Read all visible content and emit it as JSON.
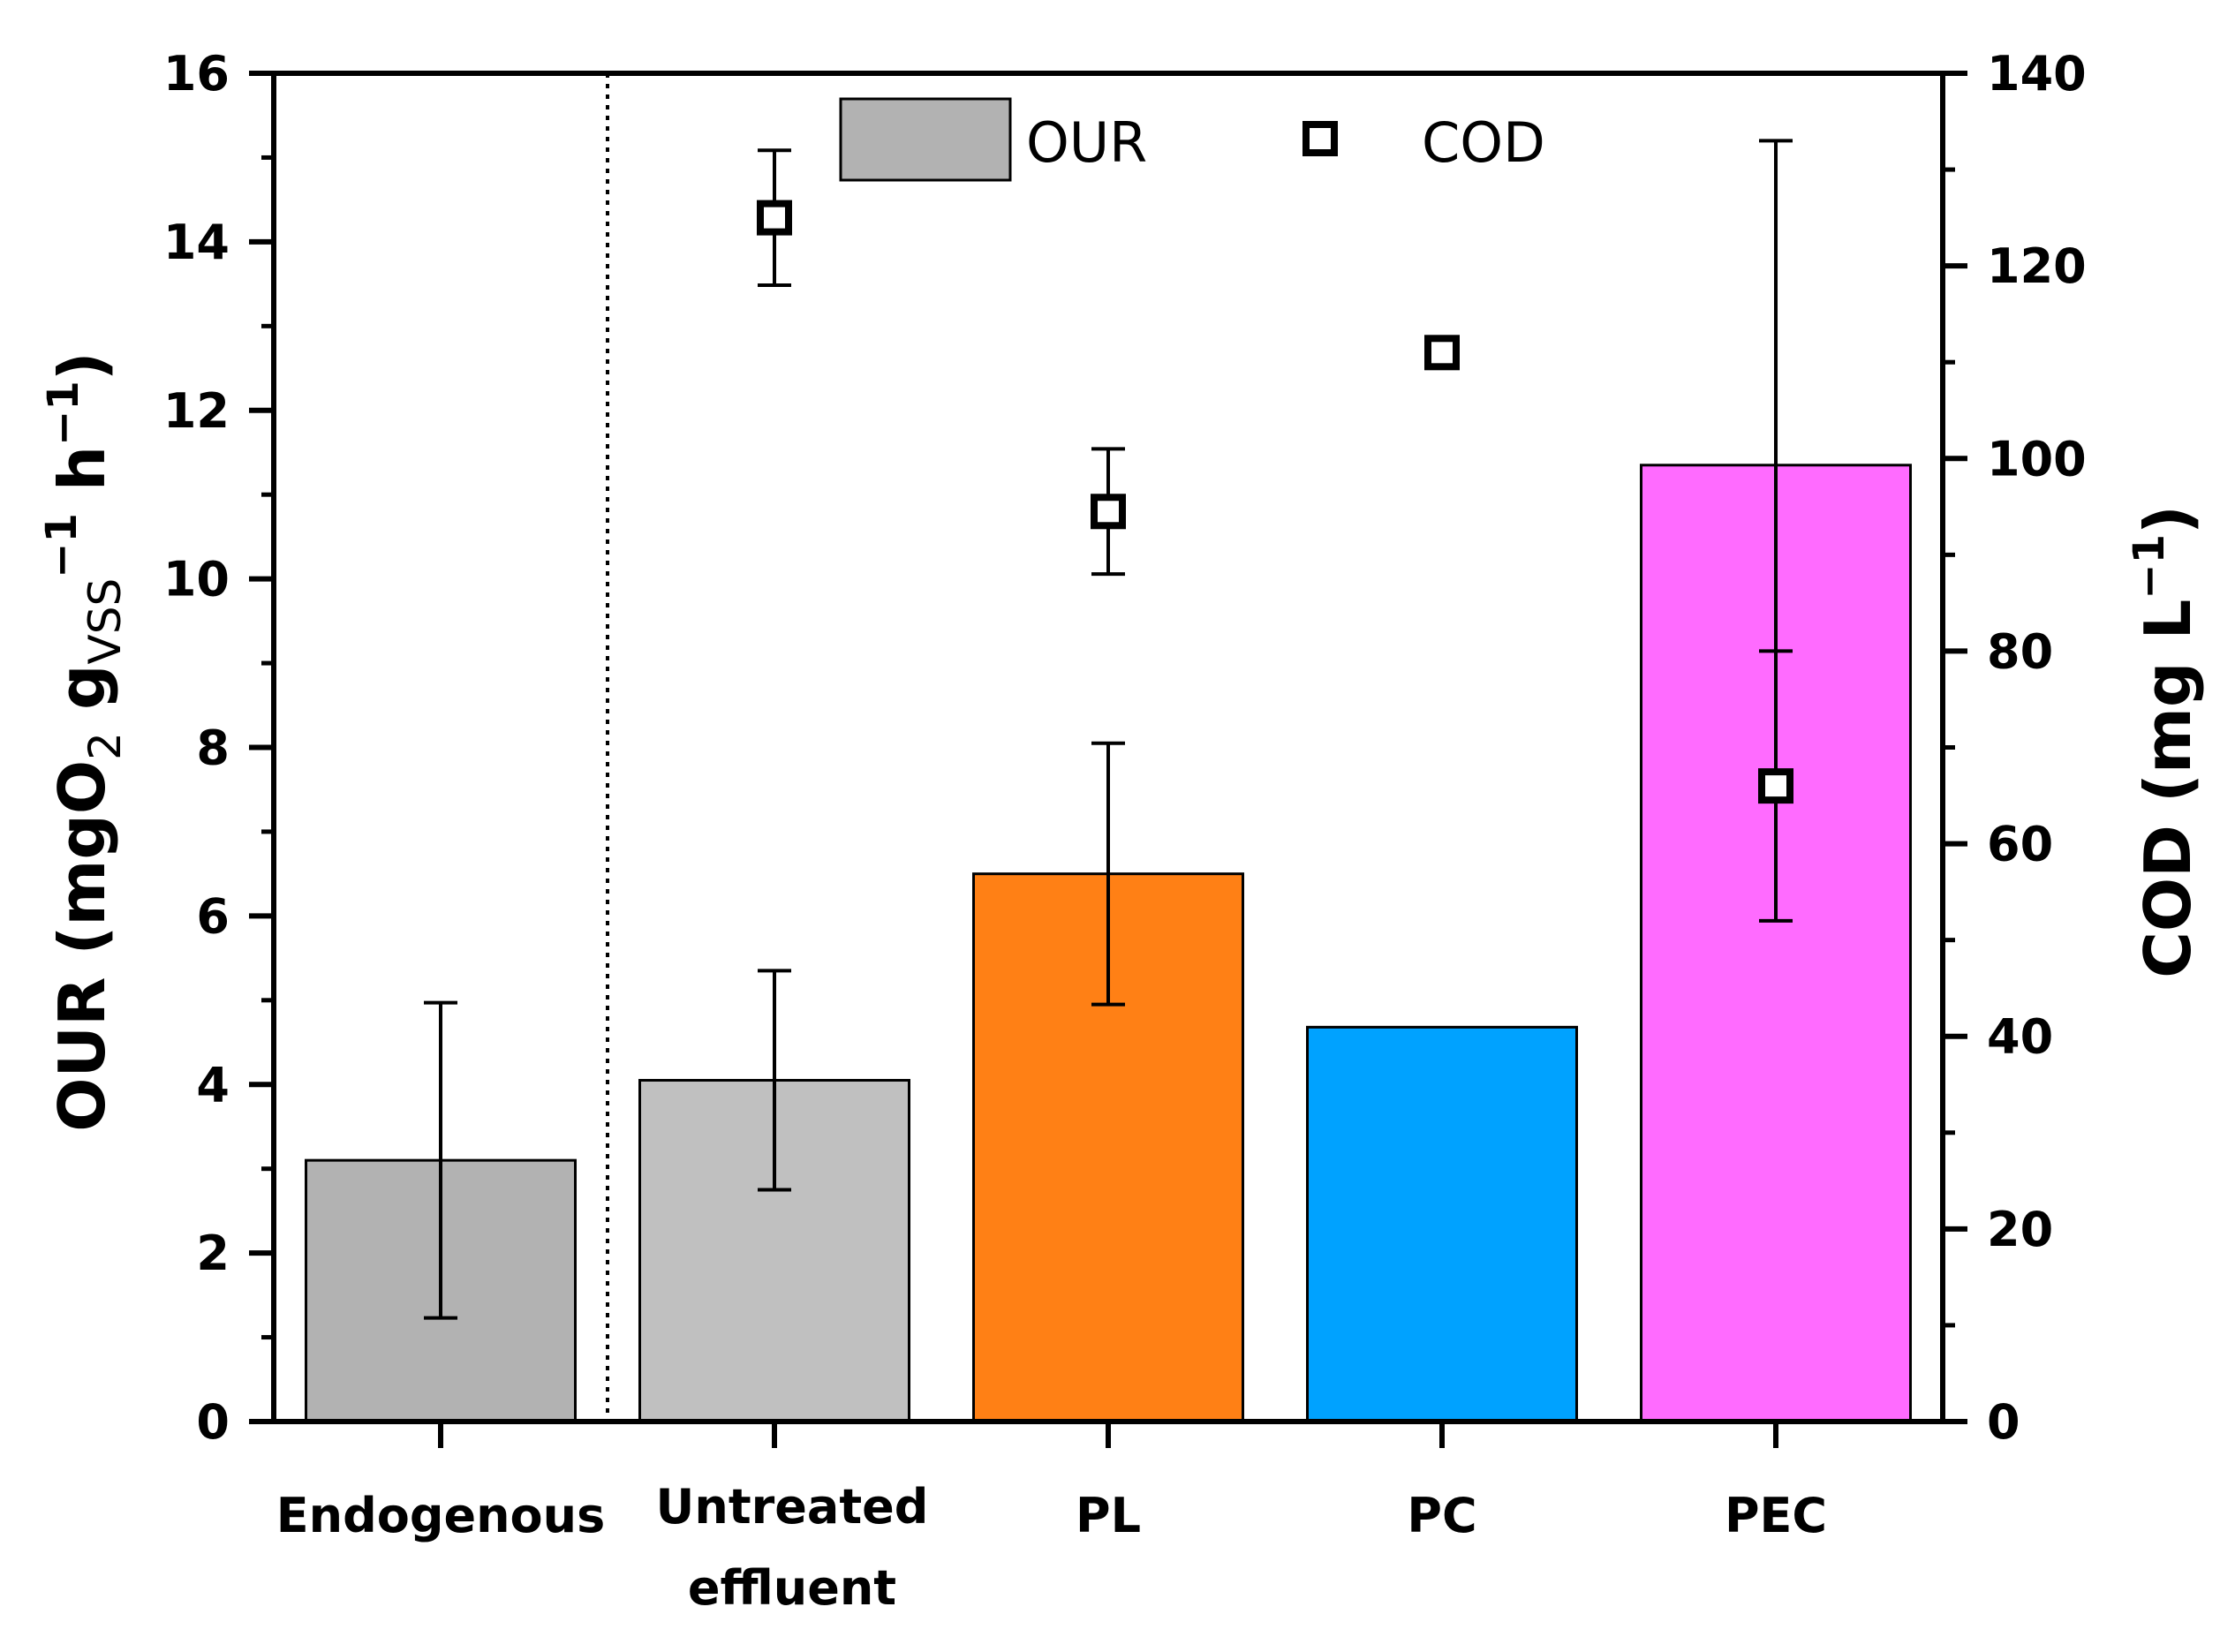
{
  "chart_data": {
    "type": "bar",
    "categories": [
      {
        "lines": [
          "Endogenous"
        ]
      },
      {
        "lines": [
          "Untreated",
          "effluent"
        ]
      },
      {
        "lines": [
          "PL"
        ]
      },
      {
        "lines": [
          "PC"
        ]
      },
      {
        "lines": [
          "PEC"
        ]
      }
    ],
    "series": [
      {
        "name": "OUR",
        "kind": "bar",
        "axis": "left",
        "values": [
          3.1,
          4.05,
          6.5,
          4.68,
          11.35
        ],
        "errors": [
          1.87,
          1.3,
          1.55,
          null,
          3.85
        ],
        "colors": [
          "#b2b2b2",
          "#c0c0c0",
          "#ff8015",
          "#00a2ff",
          "#ff6bff"
        ]
      },
      {
        "name": "COD",
        "kind": "scatter",
        "axis": "right",
        "values": [
          null,
          125,
          94.5,
          111,
          66
        ],
        "errors": [
          null,
          7,
          6.5,
          null,
          14
        ]
      }
    ],
    "left_axis": {
      "label_main": "OUR (mgO",
      "label_sub_o2": "2",
      "label_g": " g",
      "label_sub_vss": "VSS",
      "label_sup_1": "−1",
      "label_h": " h",
      "label_sup_2": "−1",
      "label_end": ")",
      "ylim": [
        0,
        16
      ],
      "ticks": [
        "0",
        "2",
        "4",
        "6",
        "8",
        "10",
        "12",
        "14",
        "16"
      ]
    },
    "right_axis": {
      "label_main": "COD (mg L",
      "label_sup": "−1",
      "label_end": ")",
      "ylim": [
        0,
        140
      ],
      "ticks": [
        "0",
        "20",
        "40",
        "60",
        "80",
        "100",
        "120",
        "140"
      ]
    },
    "legend": {
      "position": "top-center",
      "entries": [
        "OUR",
        "COD"
      ]
    },
    "separator": "dotted line after Endogenous"
  }
}
